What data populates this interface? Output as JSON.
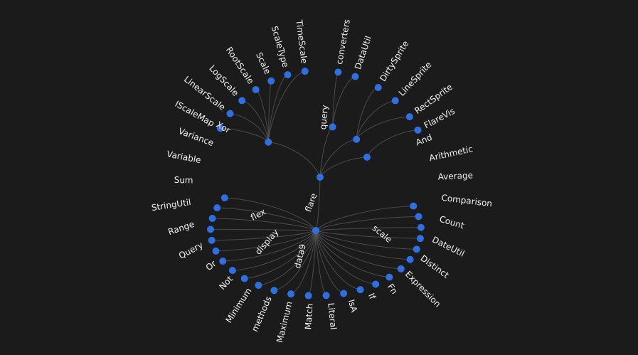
{
  "colors": {
    "background": "#1b1b1b",
    "node": "#2f6fe4",
    "link": "#5c5c5c",
    "label": "#f2f2f2"
  },
  "tree": {
    "name": "flare",
    "children": [
      {
        "name": "scale",
        "children": [
          {
            "name": "IScaleMap"
          },
          {
            "name": "LinearScale"
          },
          {
            "name": "LogScale"
          },
          {
            "name": "RootScale"
          },
          {
            "name": "Scale"
          },
          {
            "name": "ScaleType"
          },
          {
            "name": "TimeScale"
          }
        ]
      },
      {
        "name": "data9",
        "children": [
          {
            "name": "converters"
          },
          {
            "name": "DataUtil"
          }
        ]
      },
      {
        "name": "display",
        "children": [
          {
            "name": "DirtySprite"
          },
          {
            "name": "LineSprite"
          },
          {
            "name": "RectSprite"
          }
        ]
      },
      {
        "name": "flex",
        "children": [
          {
            "name": "FlareVis"
          }
        ]
      },
      {
        "name": "query",
        "children": [
          {
            "name": "And"
          },
          {
            "name": "Arithmetic"
          },
          {
            "name": "Average"
          },
          {
            "name": "Comparison"
          },
          {
            "name": "Count"
          },
          {
            "name": "DateUtil"
          },
          {
            "name": "Distinct"
          },
          {
            "name": "Expression"
          },
          {
            "name": "Fn"
          },
          {
            "name": "If"
          },
          {
            "name": "IsA"
          },
          {
            "name": "Literal"
          },
          {
            "name": "Match"
          },
          {
            "name": "Maximum"
          },
          {
            "name": "methods"
          },
          {
            "name": "Minimum"
          },
          {
            "name": "Not"
          },
          {
            "name": "Or"
          },
          {
            "name": "Query"
          },
          {
            "name": "Range"
          },
          {
            "name": "StringUtil"
          },
          {
            "name": "Sum"
          },
          {
            "name": "Variable"
          },
          {
            "name": "Variance"
          },
          {
            "name": "Xor"
          }
        ]
      }
    ]
  }
}
